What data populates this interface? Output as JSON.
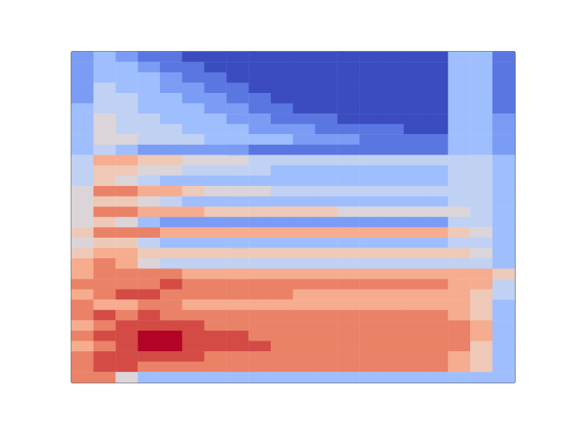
{
  "chart_data": {
    "type": "heatmap",
    "tick_labels": false,
    "zlim": [
      0,
      10
    ],
    "cells": [
      [
        2,
        3,
        2,
        1,
        1,
        0,
        0,
        0,
        0,
        0,
        0,
        0,
        0,
        0,
        0,
        0,
        0,
        3,
        3,
        1
      ],
      [
        2,
        3,
        3,
        2,
        1,
        1,
        0,
        0,
        0,
        0,
        0,
        0,
        0,
        0,
        0,
        0,
        0,
        3,
        3,
        1
      ],
      [
        2,
        3,
        3,
        3,
        2,
        1,
        1,
        0,
        0,
        0,
        0,
        0,
        0,
        0,
        0,
        0,
        0,
        3,
        3,
        1
      ],
      [
        2,
        4,
        3,
        3,
        2,
        2,
        1,
        1,
        0,
        0,
        0,
        0,
        0,
        0,
        0,
        0,
        0,
        3,
        3,
        1
      ],
      [
        2,
        4,
        4,
        3,
        3,
        2,
        2,
        1,
        1,
        0,
        0,
        0,
        0,
        0,
        0,
        0,
        0,
        3,
        3,
        1
      ],
      [
        3,
        4,
        4,
        3,
        3,
        3,
        2,
        2,
        1,
        1,
        0,
        0,
        0,
        0,
        0,
        0,
        0,
        3,
        3,
        1
      ],
      [
        3,
        5,
        4,
        4,
        3,
        3,
        3,
        2,
        2,
        1,
        1,
        1,
        0,
        0,
        0,
        0,
        0,
        3,
        3,
        2
      ],
      [
        3,
        5,
        4,
        4,
        4,
        3,
        3,
        3,
        2,
        2,
        2,
        1,
        1,
        1,
        1,
        0,
        0,
        3,
        3,
        2
      ],
      [
        3,
        5,
        5,
        4,
        4,
        4,
        3,
        3,
        3,
        3,
        2,
        2,
        2,
        1,
        1,
        1,
        1,
        3,
        3,
        2
      ],
      [
        3,
        4,
        3,
        2,
        2,
        2,
        2,
        2,
        1,
        1,
        1,
        1,
        1,
        1,
        1,
        1,
        1,
        3,
        3,
        2
      ],
      [
        4,
        7,
        7,
        6,
        6,
        5,
        5,
        5,
        4,
        4,
        4,
        4,
        4,
        4,
        4,
        4,
        4,
        4,
        4,
        3
      ],
      [
        4,
        6,
        6,
        5,
        5,
        4,
        4,
        4,
        4,
        3,
        3,
        3,
        3,
        3,
        3,
        3,
        3,
        4,
        4,
        3
      ],
      [
        4,
        6,
        5,
        4,
        3,
        3,
        3,
        3,
        3,
        3,
        3,
        3,
        3,
        3,
        3,
        3,
        3,
        4,
        4,
        3
      ],
      [
        5,
        8,
        8,
        7,
        7,
        6,
        5,
        5,
        5,
        4,
        4,
        4,
        4,
        4,
        4,
        4,
        4,
        4,
        4,
        3
      ],
      [
        5,
        6,
        6,
        5,
        4,
        3,
        3,
        3,
        3,
        3,
        3,
        3,
        3,
        3,
        3,
        3,
        3,
        4,
        4,
        3
      ],
      [
        5,
        8,
        8,
        7,
        7,
        7,
        6,
        6,
        6,
        6,
        6,
        6,
        5,
        5,
        5,
        5,
        5,
        5,
        4,
        3
      ],
      [
        5,
        6,
        5,
        3,
        2,
        2,
        2,
        2,
        2,
        2,
        2,
        2,
        2,
        2,
        2,
        2,
        2,
        4,
        4,
        3
      ],
      [
        6,
        8,
        8,
        8,
        7,
        7,
        7,
        7,
        7,
        7,
        7,
        7,
        7,
        7,
        7,
        7,
        7,
        6,
        5,
        3
      ],
      [
        5,
        6,
        6,
        4,
        3,
        3,
        3,
        3,
        3,
        3,
        3,
        3,
        3,
        3,
        3,
        3,
        3,
        4,
        4,
        3
      ],
      [
        6,
        7,
        7,
        6,
        6,
        6,
        6,
        6,
        6,
        6,
        6,
        6,
        6,
        6,
        6,
        6,
        6,
        6,
        5,
        3
      ],
      [
        7,
        8,
        7,
        5,
        4,
        4,
        4,
        4,
        4,
        4,
        4,
        4,
        4,
        4,
        4,
        4,
        4,
        4,
        4,
        3
      ],
      [
        7,
        8,
        8,
        8,
        8,
        7,
        7,
        7,
        7,
        7,
        7,
        7,
        7,
        7,
        7,
        7,
        7,
        7,
        7,
        6
      ],
      [
        8,
        8,
        8,
        8,
        9,
        8,
        8,
        8,
        8,
        8,
        8,
        8,
        8,
        8,
        8,
        8,
        8,
        7,
        7,
        4
      ],
      [
        7,
        8,
        9,
        9,
        8,
        8,
        8,
        8,
        8,
        8,
        7,
        7,
        7,
        7,
        7,
        7,
        7,
        7,
        6,
        4
      ],
      [
        8,
        7,
        7,
        8,
        8,
        7,
        7,
        7,
        7,
        7,
        7,
        7,
        7,
        7,
        7,
        7,
        7,
        7,
        6,
        3
      ],
      [
        8,
        9,
        8,
        9,
        8,
        8,
        8,
        8,
        8,
        8,
        8,
        8,
        8,
        8,
        8,
        8,
        8,
        7,
        6,
        3
      ],
      [
        7,
        8,
        9,
        9,
        9,
        9,
        8,
        8,
        8,
        8,
        8,
        8,
        8,
        8,
        8,
        8,
        8,
        8,
        7,
        3
      ],
      [
        8,
        9,
        9,
        10,
        10,
        9,
        9,
        9,
        8,
        8,
        8,
        8,
        8,
        8,
        8,
        8,
        8,
        8,
        7,
        3
      ],
      [
        7,
        8,
        9,
        10,
        10,
        9,
        9,
        9,
        9,
        8,
        8,
        8,
        8,
        8,
        8,
        8,
        8,
        8,
        6,
        3
      ],
      [
        8,
        9,
        9,
        9,
        9,
        9,
        8,
        8,
        8,
        8,
        8,
        8,
        8,
        8,
        8,
        8,
        8,
        7,
        6,
        3
      ],
      [
        8,
        9,
        9,
        8,
        8,
        8,
        8,
        8,
        8,
        8,
        8,
        8,
        8,
        8,
        8,
        8,
        8,
        7,
        6,
        3
      ],
      [
        8,
        8,
        5,
        3,
        3,
        3,
        3,
        3,
        3,
        3,
        3,
        3,
        3,
        3,
        3,
        3,
        3,
        3,
        3,
        3
      ]
    ]
  }
}
